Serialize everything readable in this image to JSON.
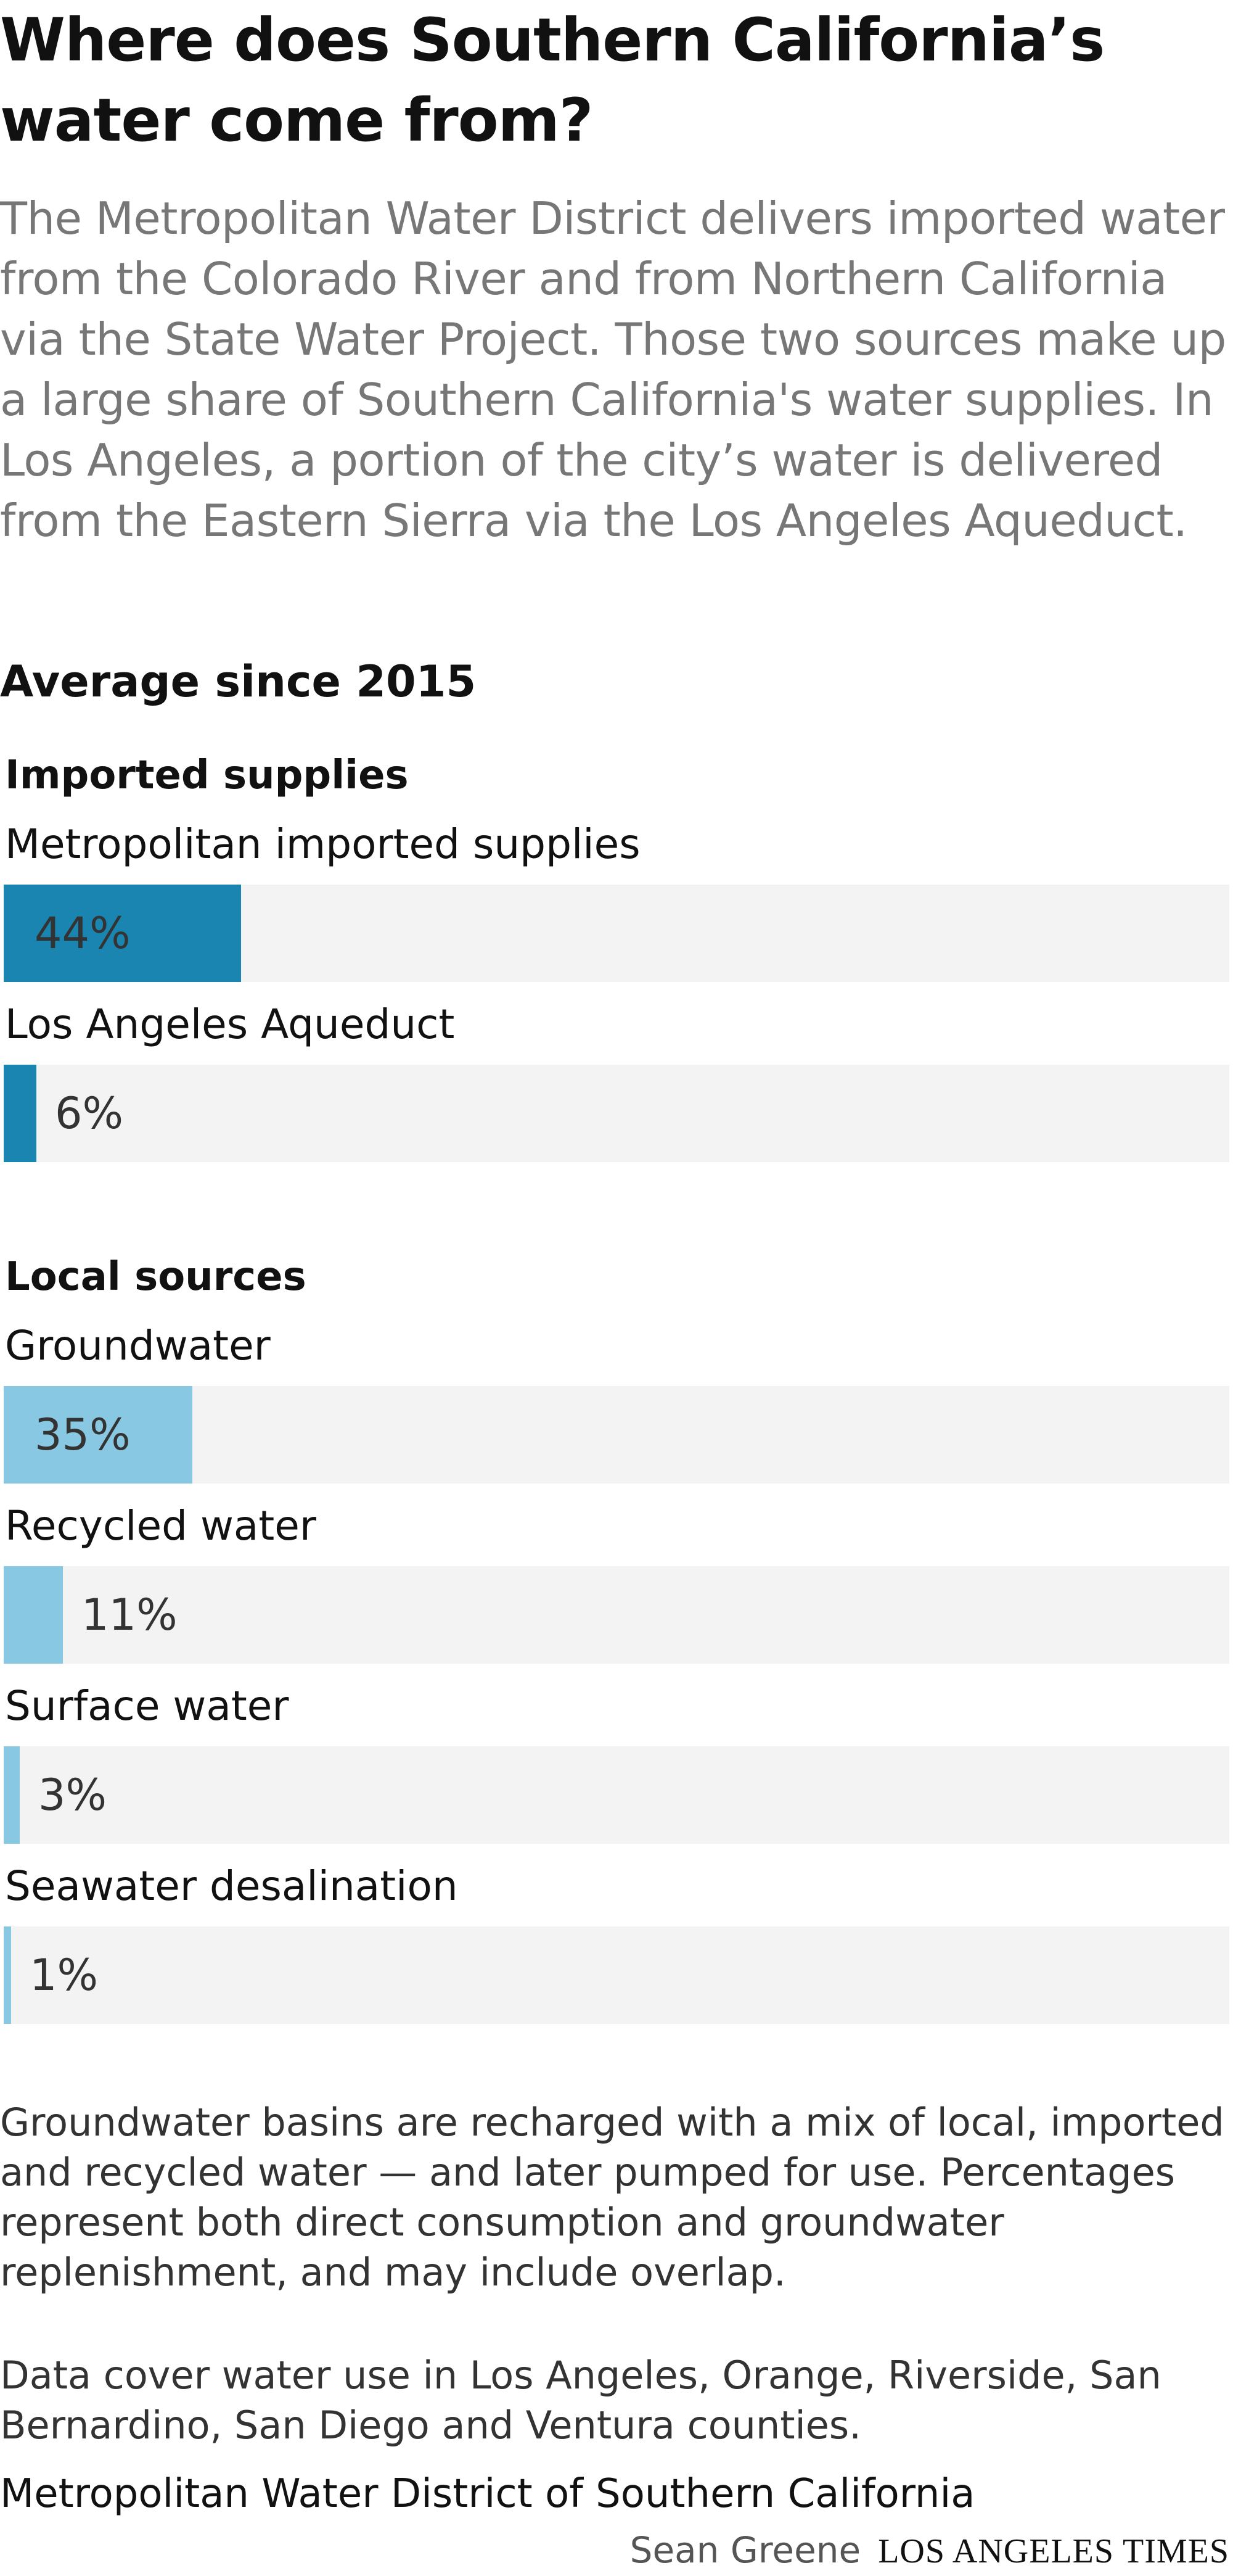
{
  "headline": "Where does Southern California’s water come from?",
  "intro": "The Metropolitan Water District delivers imported water from the Colorado River and from Northern California via the State Water Project. Those two sources make up a large share of Southern California's water supplies. In Los Angeles, a portion of the city’s water is delivered from the Eastern Sierra via the Los Angeles Aqueduct.",
  "chart_data": {
    "type": "bar",
    "title": "Average since 2015",
    "xlim": [
      0,
      100
    ],
    "unit": "%",
    "groups": [
      {
        "name": "Imported supplies",
        "color": "#1a85b0",
        "items": [
          {
            "category": "Metropolitan imported supplies",
            "value": 44,
            "label": "44%"
          },
          {
            "category": "Los Angeles Aqueduct",
            "value": 6,
            "label": "6%"
          }
        ]
      },
      {
        "name": "Local sources",
        "color": "#88c8e2",
        "items": [
          {
            "category": "Groundwater",
            "value": 35,
            "label": "35%"
          },
          {
            "category": "Recycled water",
            "value": 11,
            "label": "11%"
          },
          {
            "category": "Surface water",
            "value": 3,
            "label": "3%"
          },
          {
            "category": "Seawater desalination",
            "value": 1,
            "label": "1%"
          }
        ]
      }
    ]
  },
  "notes": [
    "Groundwater basins are recharged with a mix of local, imported and recycled water — and later pumped for use. Percentages represent both direct consumption and groundwater replenishment, and may include overlap.",
    "Data cover water use in Los Angeles, Orange, Riverside, San Bernardino, San Diego and Ventura counties."
  ],
  "source": "Metropolitan Water District of Southern California",
  "byline": "Sean Greene",
  "publication": "LOS ANGELES TIMES",
  "colors": {
    "imported": "#1a85b0",
    "local": "#88c8e2",
    "track": "#f3f3f3"
  }
}
